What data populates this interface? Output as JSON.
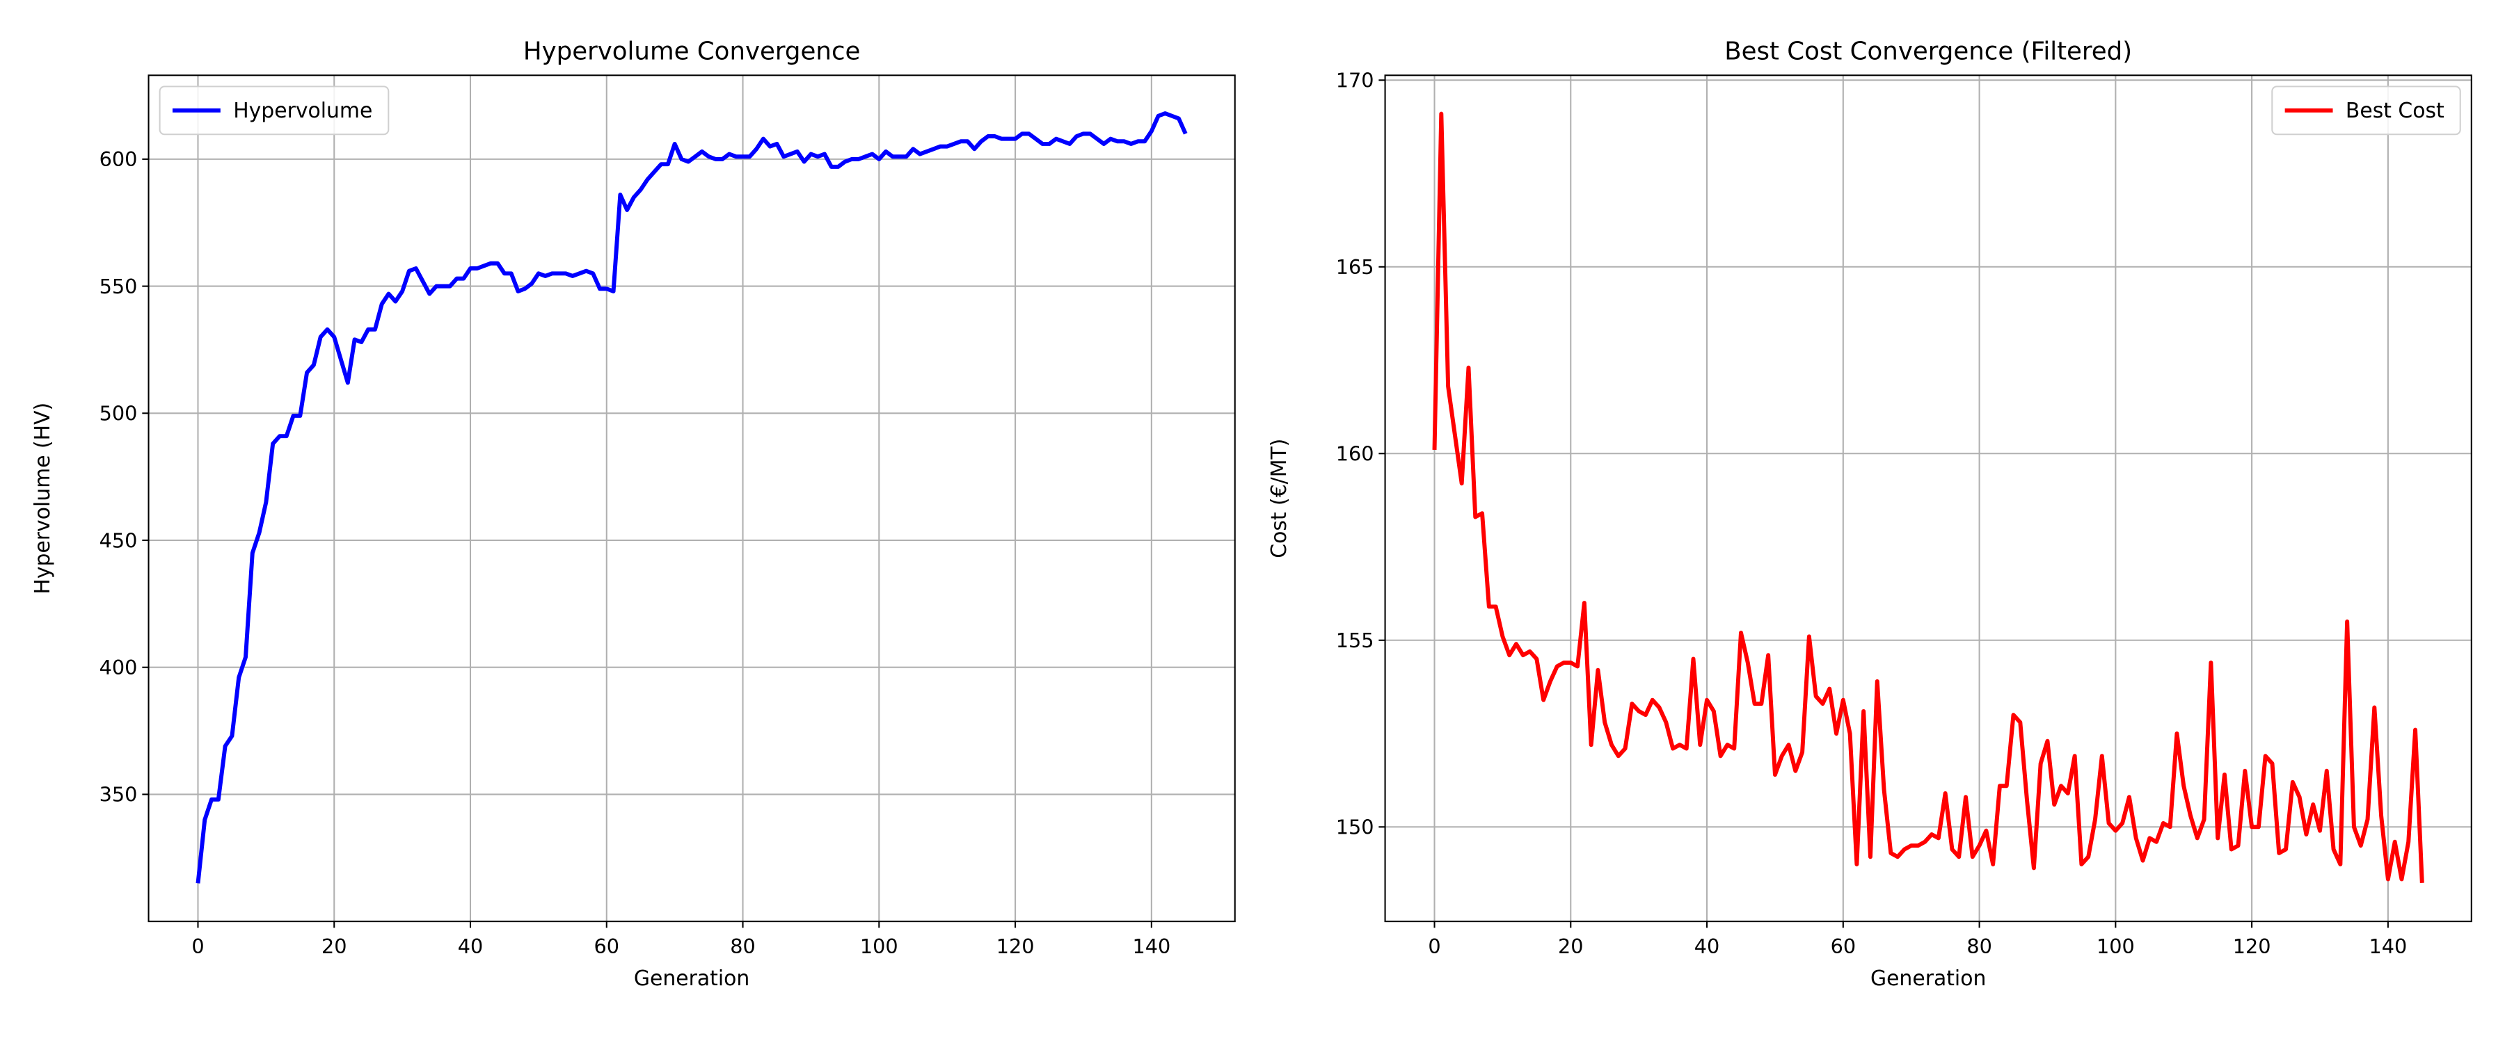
{
  "chart_data": [
    {
      "type": "line",
      "title": "Hypervolume Convergence",
      "xlabel": "Generation",
      "ylabel": "Hypervolume (HV)",
      "x": [
        0,
        1,
        2,
        3,
        4,
        5,
        6,
        7,
        8,
        9,
        10,
        11,
        12,
        13,
        14,
        15,
        16,
        17,
        18,
        19,
        20,
        21,
        22,
        23,
        24,
        25,
        26,
        27,
        28,
        29,
        30,
        31,
        32,
        33,
        34,
        35,
        36,
        37,
        38,
        39,
        40,
        41,
        42,
        43,
        44,
        45,
        46,
        47,
        48,
        49,
        50,
        51,
        52,
        53,
        54,
        55,
        56,
        57,
        58,
        59,
        60,
        61,
        62,
        63,
        64,
        65,
        66,
        67,
        68,
        69,
        70,
        71,
        72,
        73,
        74,
        75,
        76,
        77,
        78,
        79,
        80,
        81,
        82,
        83,
        84,
        85,
        86,
        87,
        88,
        89,
        90,
        91,
        92,
        93,
        94,
        95,
        96,
        97,
        98,
        99,
        100,
        101,
        102,
        103,
        104,
        105,
        106,
        107,
        108,
        109,
        110,
        111,
        112,
        113,
        114,
        115,
        116,
        117,
        118,
        119,
        120,
        121,
        122,
        123,
        124,
        125,
        126,
        127,
        128,
        129,
        130,
        131,
        132,
        133,
        134,
        135,
        136,
        137,
        138,
        139,
        140,
        141,
        142,
        143,
        144,
        145
      ],
      "series": [
        {
          "name": "Hypervolume",
          "color": "#0000ff",
          "values": [
            315,
            340,
            348,
            348,
            369,
            373,
            396,
            404,
            445,
            453,
            465,
            488,
            491,
            491,
            499,
            499,
            516,
            519,
            530,
            533,
            530,
            521,
            512,
            529,
            528,
            533,
            533,
            543,
            547,
            544,
            548,
            556,
            557,
            552,
            547,
            550,
            550,
            550,
            553,
            553,
            557,
            557,
            558,
            559,
            559,
            555,
            555,
            548,
            549,
            551,
            555,
            554,
            555,
            555,
            555,
            554,
            555,
            556,
            555,
            549,
            549,
            548,
            586,
            580,
            585,
            588,
            592,
            595,
            598,
            598,
            606,
            600,
            599,
            601,
            603,
            601,
            600,
            600,
            602,
            601,
            601,
            601,
            604,
            608,
            605,
            606,
            601,
            602,
            603,
            599,
            602,
            601,
            602,
            597,
            597,
            599,
            600,
            600,
            601,
            602,
            600,
            603,
            601,
            601,
            601,
            604,
            602,
            603,
            604,
            605,
            605,
            606,
            607,
            607,
            604,
            607,
            609,
            609,
            608,
            608,
            608,
            610,
            610,
            608,
            606,
            606,
            608,
            607,
            606,
            609,
            610,
            610,
            608,
            606,
            608,
            607,
            607,
            606,
            607,
            607,
            611,
            617,
            618,
            617,
            616,
            610
          ]
        }
      ],
      "xlim": [
        -7.25,
        152.25
      ],
      "ylim": [
        300,
        633
      ],
      "xticks": [
        0,
        20,
        40,
        60,
        80,
        100,
        120,
        140
      ],
      "yticks": [
        350,
        400,
        450,
        500,
        550,
        600
      ],
      "grid": true,
      "legend": "upper left"
    },
    {
      "type": "line",
      "title": "Best Cost Convergence (Filtered)",
      "xlabel": "Generation",
      "ylabel": "Cost (€/MT)",
      "x": [
        0,
        1,
        2,
        3,
        4,
        5,
        6,
        7,
        8,
        9,
        10,
        11,
        12,
        13,
        14,
        15,
        16,
        17,
        18,
        19,
        20,
        21,
        22,
        23,
        24,
        25,
        26,
        27,
        28,
        29,
        30,
        31,
        32,
        33,
        34,
        35,
        36,
        37,
        38,
        39,
        40,
        41,
        42,
        43,
        44,
        45,
        46,
        47,
        48,
        49,
        50,
        51,
        52,
        53,
        54,
        55,
        56,
        57,
        58,
        59,
        60,
        61,
        62,
        63,
        64,
        65,
        66,
        67,
        68,
        69,
        70,
        71,
        72,
        73,
        74,
        75,
        76,
        77,
        78,
        79,
        80,
        81,
        82,
        83,
        84,
        85,
        86,
        87,
        88,
        89,
        90,
        91,
        92,
        93,
        94,
        95,
        96,
        97,
        98,
        99,
        100,
        101,
        102,
        103,
        104,
        105,
        106,
        107,
        108,
        109,
        110,
        111,
        112,
        113,
        114,
        115,
        116,
        117,
        118,
        119,
        120,
        121,
        122,
        123,
        124,
        125,
        126,
        127,
        128,
        129,
        130,
        131,
        132,
        133,
        134,
        135,
        136,
        137,
        138,
        139,
        140,
        141,
        142,
        143,
        144,
        145
      ],
      "series": [
        {
          "name": "Best Cost",
          "color": "#ff0000",
          "values": [
            160.1,
            169.1,
            161.8,
            160.5,
            159.2,
            162.3,
            158.3,
            158.4,
            155.9,
            155.9,
            155.1,
            154.6,
            154.9,
            154.6,
            154.7,
            154.5,
            153.4,
            153.9,
            154.3,
            154.4,
            154.4,
            154.3,
            156.0,
            152.2,
            154.2,
            152.8,
            152.2,
            151.9,
            152.1,
            153.3,
            153.1,
            153.0,
            153.4,
            153.2,
            152.8,
            152.1,
            152.2,
            152.1,
            154.5,
            152.2,
            153.4,
            153.1,
            151.9,
            152.2,
            152.1,
            155.2,
            154.4,
            153.3,
            153.3,
            154.6,
            151.4,
            151.9,
            152.2,
            151.5,
            152.0,
            155.1,
            153.5,
            153.3,
            153.7,
            152.5,
            153.4,
            152.5,
            149.0,
            153.1,
            149.2,
            153.9,
            151.0,
            149.3,
            149.2,
            149.4,
            149.5,
            149.5,
            149.6,
            149.8,
            149.7,
            150.9,
            149.4,
            149.2,
            150.8,
            149.2,
            149.5,
            149.9,
            149.0,
            151.1,
            151.1,
            153.0,
            152.8,
            150.7,
            148.9,
            151.7,
            152.3,
            150.6,
            151.1,
            150.9,
            151.9,
            149.0,
            149.2,
            150.2,
            151.9,
            150.1,
            149.9,
            150.1,
            150.8,
            149.7,
            149.1,
            149.7,
            149.6,
            150.1,
            150.0,
            152.5,
            151.1,
            150.3,
            149.7,
            150.2,
            154.4,
            149.7,
            151.4,
            149.4,
            149.5,
            151.5,
            150.0,
            150.0,
            151.9,
            151.7,
            149.3,
            149.4,
            151.2,
            150.8,
            149.8,
            150.6,
            149.9,
            151.5,
            149.4,
            149.0,
            155.5,
            150.0,
            149.5,
            150.2,
            153.2,
            150.3,
            148.6,
            149.6,
            148.6,
            149.6,
            152.6,
            148.5
          ]
        }
      ],
      "xlim": [
        -7.25,
        152.25
      ],
      "ylim": [
        147.47,
        170.13
      ],
      "xticks": [
        0,
        20,
        40,
        60,
        80,
        100,
        120,
        140
      ],
      "yticks": [
        150,
        155,
        160,
        165,
        170
      ],
      "grid": true,
      "legend": "upper right"
    }
  ]
}
